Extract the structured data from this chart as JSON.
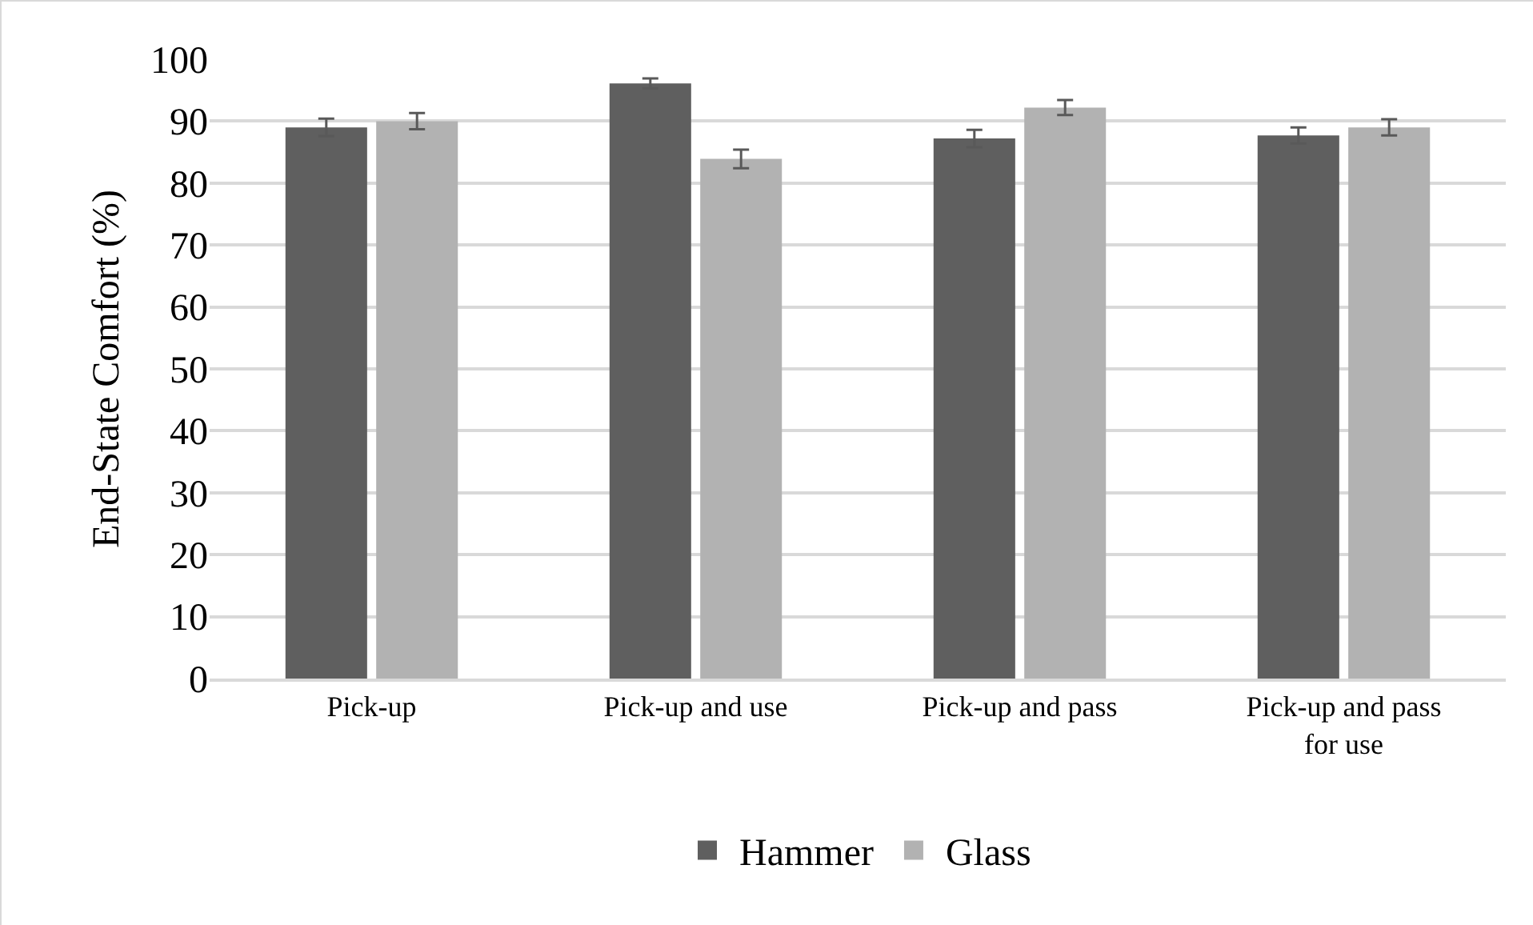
{
  "chart_data": {
    "type": "bar",
    "ylabel": "End-State Comfort (%)",
    "categories": [
      "Pick-up",
      "Pick-up and use",
      "Pick-up and pass",
      "Pick-up and pass for use"
    ],
    "series": [
      {
        "name": "Hammer",
        "color": "#5f5f5f",
        "values": [
          89.0,
          96.1,
          87.2,
          87.7
        ],
        "errors": [
          1.4,
          0.8,
          1.4,
          1.3
        ]
      },
      {
        "name": "Glass",
        "color": "#b2b2b2",
        "values": [
          90.0,
          83.9,
          92.2,
          89.0
        ],
        "errors": [
          1.3,
          1.5,
          1.2,
          1.3
        ]
      }
    ],
    "ylim": [
      0,
      100
    ],
    "yticks": [
      0,
      10,
      20,
      30,
      40,
      50,
      60,
      70,
      80,
      90,
      100
    ],
    "grid": "y",
    "legend": "bottom"
  }
}
